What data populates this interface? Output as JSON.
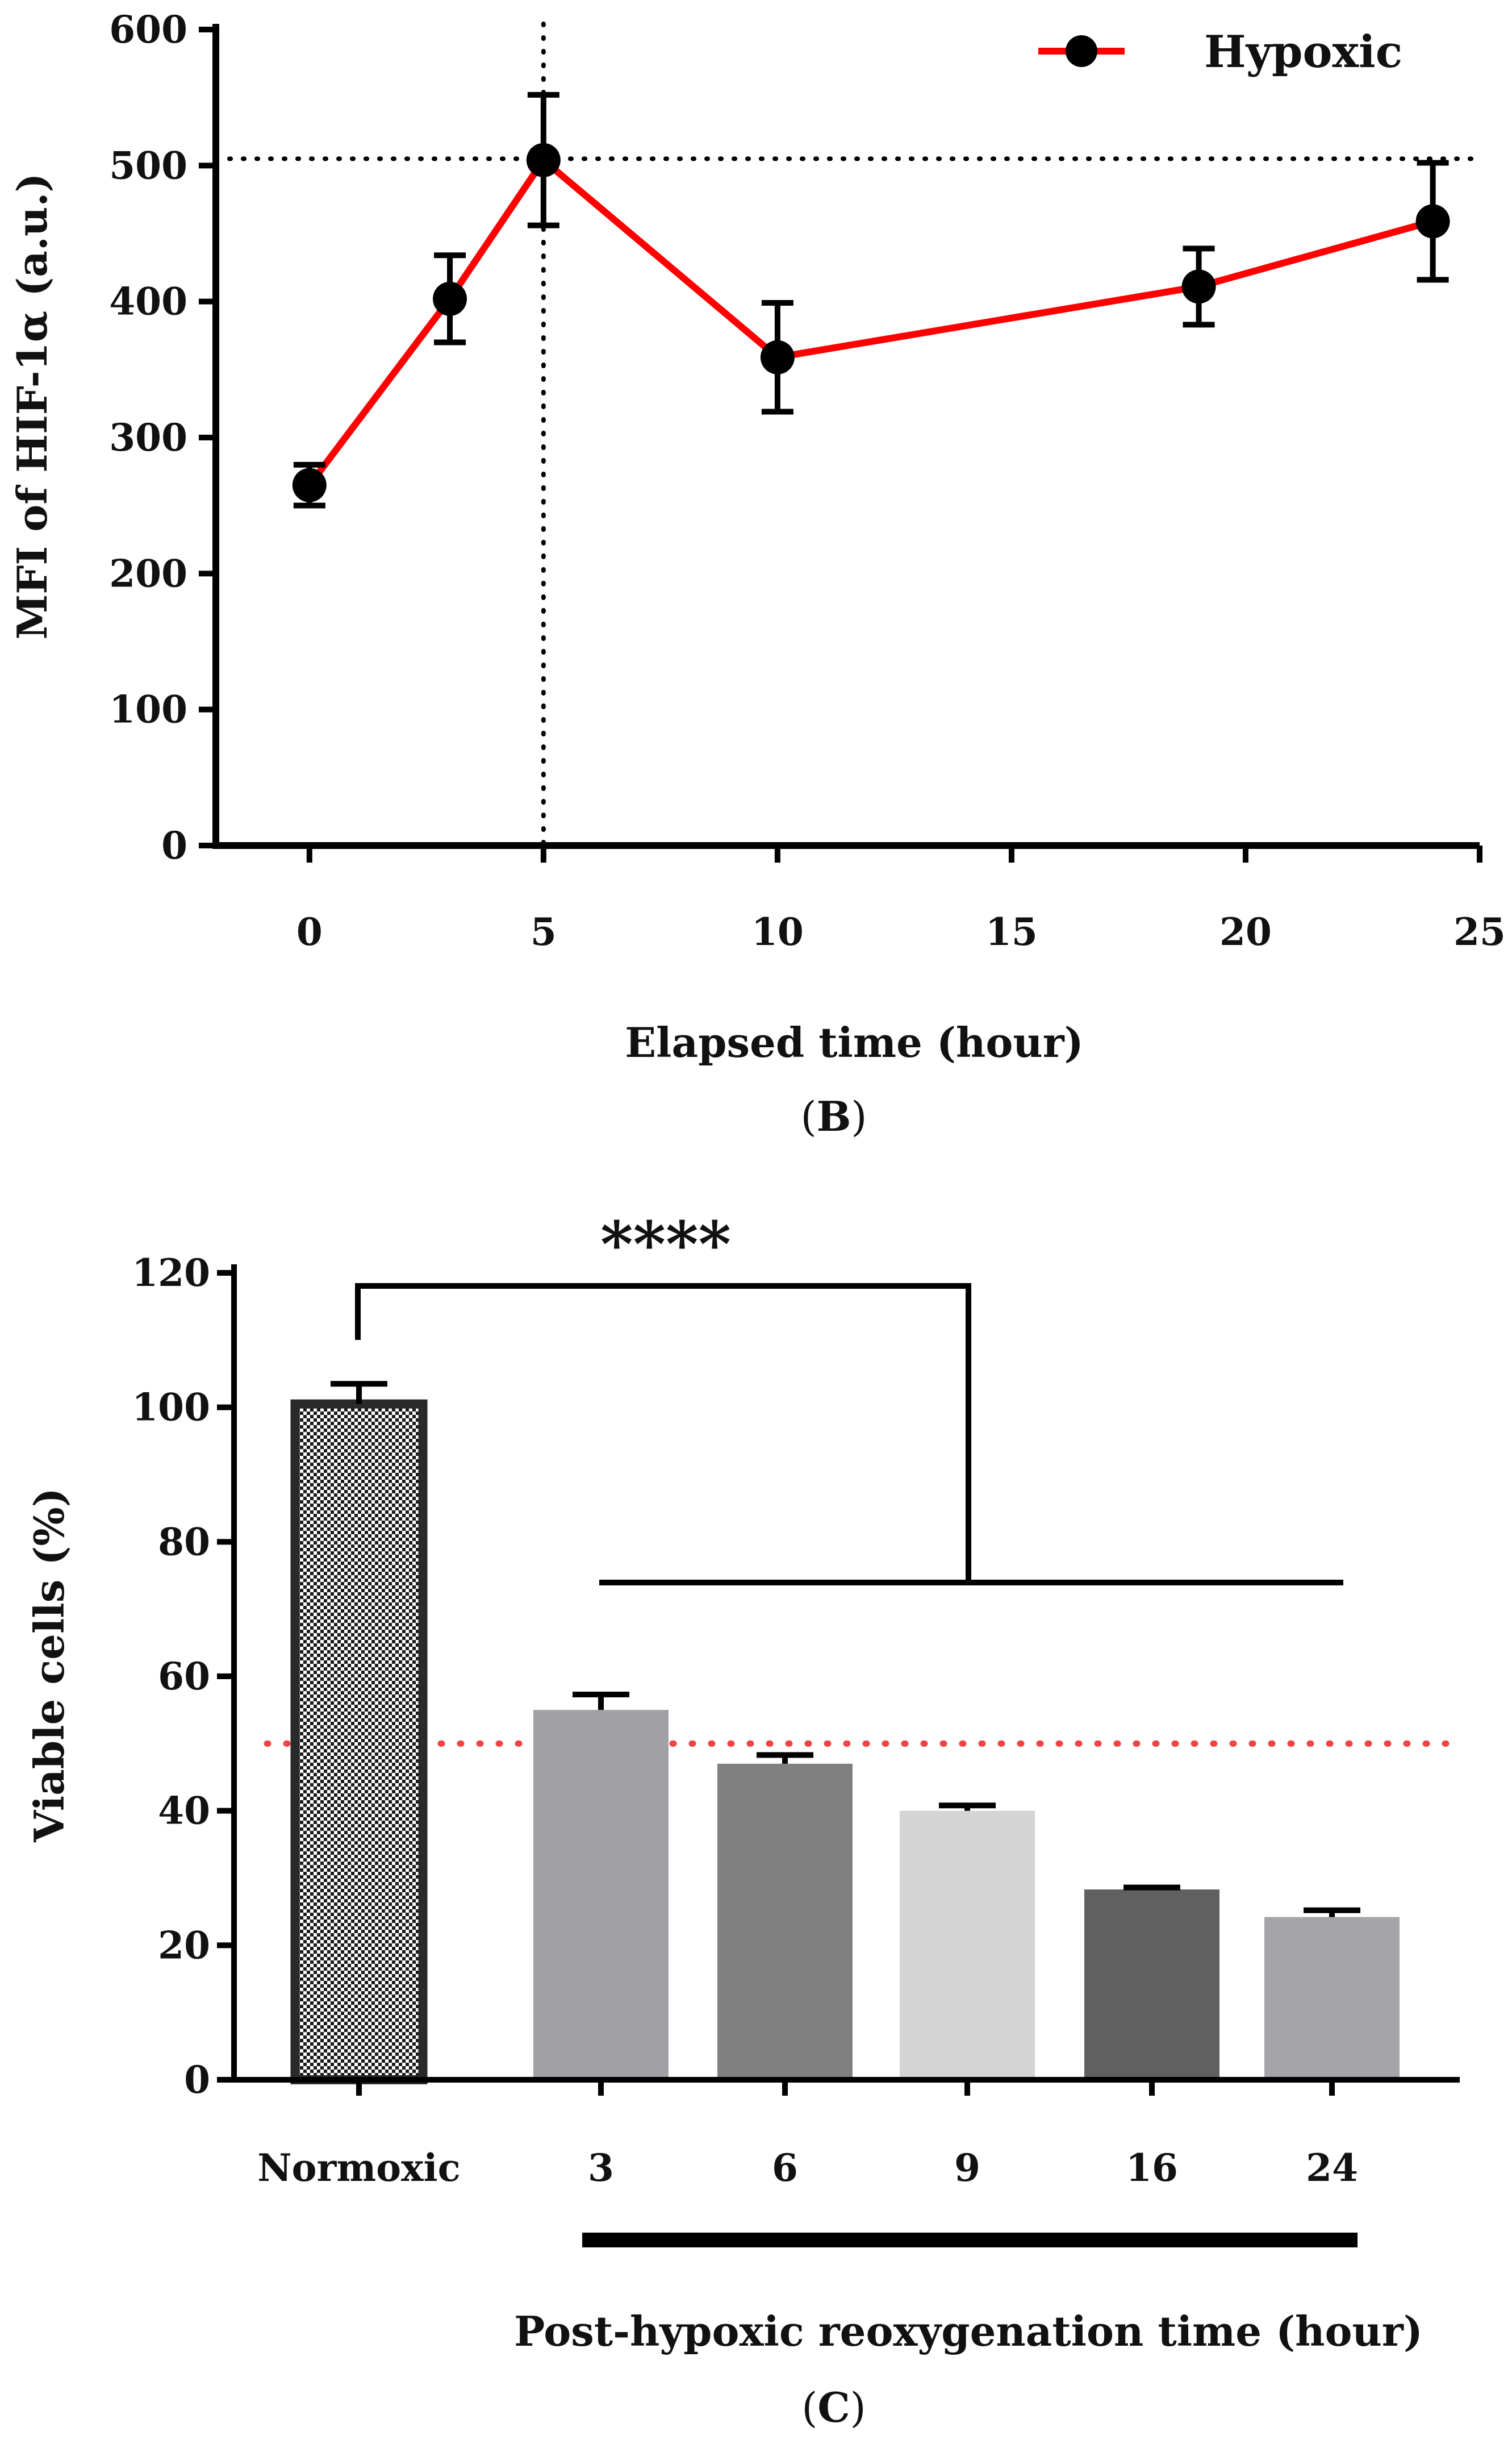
{
  "chart_data": [
    {
      "id": "B",
      "type": "line",
      "caption_letter": "B",
      "xlabel": "Elapsed time (hour)",
      "ylabel": "MFI of HIF-1α (a.u.)",
      "xlim": [
        -2,
        25
      ],
      "ylim": [
        0,
        600
      ],
      "xticks": [
        0,
        5,
        10,
        15,
        20,
        25
      ],
      "yticks": [
        0,
        100,
        200,
        300,
        400,
        500,
        600
      ],
      "legend": {
        "position": "top-right",
        "label": "Hypoxic"
      },
      "reference_lines": {
        "x": 5,
        "y": 505
      },
      "series": [
        {
          "name": "Hypoxic",
          "color": "#ff0000",
          "marker_color": "#000000",
          "x": [
            0,
            3,
            5,
            10,
            19,
            24
          ],
          "y": [
            265,
            402,
            504,
            359,
            411,
            459
          ],
          "err": [
            15,
            32,
            48,
            40,
            28,
            43
          ]
        }
      ]
    },
    {
      "id": "C",
      "type": "bar",
      "caption_letter": "C",
      "xlabel": "Post-hypoxic reoxygenation time (hour)",
      "ylabel": "Viable cells (%)",
      "ylim": [
        0,
        120
      ],
      "yticks": [
        0,
        20,
        40,
        60,
        80,
        100,
        120
      ],
      "categories": [
        "Normoxic",
        "3",
        "6",
        "9",
        "16",
        "24"
      ],
      "values": [
        100.5,
        55,
        47,
        40,
        28.3,
        24.2
      ],
      "errors": [
        3,
        2.3,
        1.3,
        0.8,
        0.3,
        1
      ],
      "bar_colors": [
        "#e0e0e0",
        "#a1a1a5",
        "#808080",
        "#d4d4d4",
        "#606060",
        "#a5a4a8"
      ],
      "reference_line": {
        "y": 50,
        "color": "#ee4444"
      },
      "significance": "****"
    }
  ]
}
